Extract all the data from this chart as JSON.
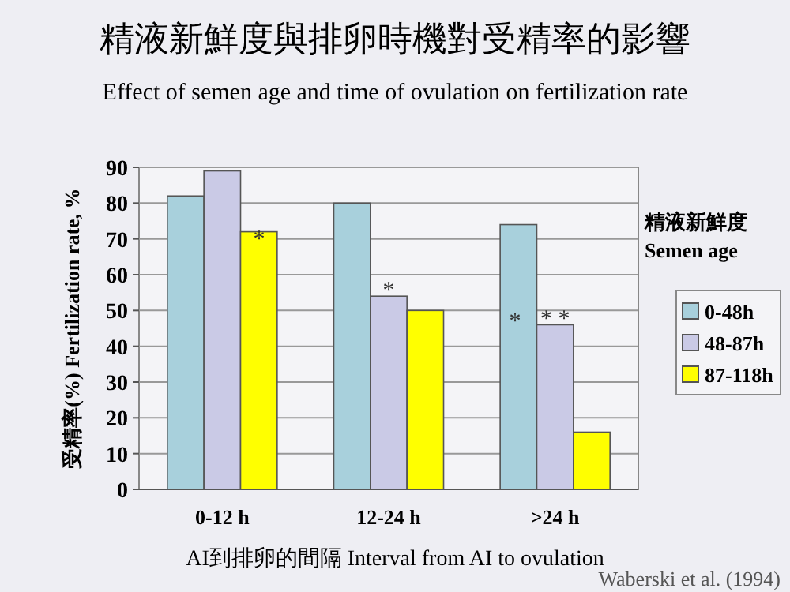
{
  "chart_data": {
    "type": "bar",
    "title": "精液新鮮度與排卵時機對受精率的影響",
    "subtitle": "Effect of semen age and time of ovulation on fertilization rate",
    "xlabel": "AI到排卵的間隔  Interval from AI to ovulation",
    "ylabel": "受精率(%)  Fertilization rate, %",
    "legend_title": "精液新鮮度 Semen age",
    "categories": [
      "0-12 h",
      "12-24 h",
      ">24 h"
    ],
    "series": [
      {
        "name": "0-48h",
        "color": "#a8d0dc",
        "values": [
          82,
          80,
          74
        ]
      },
      {
        "name": "48-87h",
        "color": "#cacae6",
        "values": [
          89,
          54,
          46
        ]
      },
      {
        "name": "87-118h",
        "color": "#ffff00",
        "values": [
          72,
          50,
          16
        ]
      }
    ],
    "ylim": [
      0,
      90
    ],
    "yticks": [
      0,
      10,
      20,
      30,
      40,
      50,
      60,
      70,
      80,
      90
    ],
    "grid": "y",
    "legend": "right",
    "annotations": [
      "*",
      {
        "text": "*",
        "x": "12-24 h",
        "y": 54
      },
      "*",
      {
        "text": "* *",
        "x": ">24 h",
        "y": 46
      },
      "Waberski et al. (1994)"
    ]
  }
}
